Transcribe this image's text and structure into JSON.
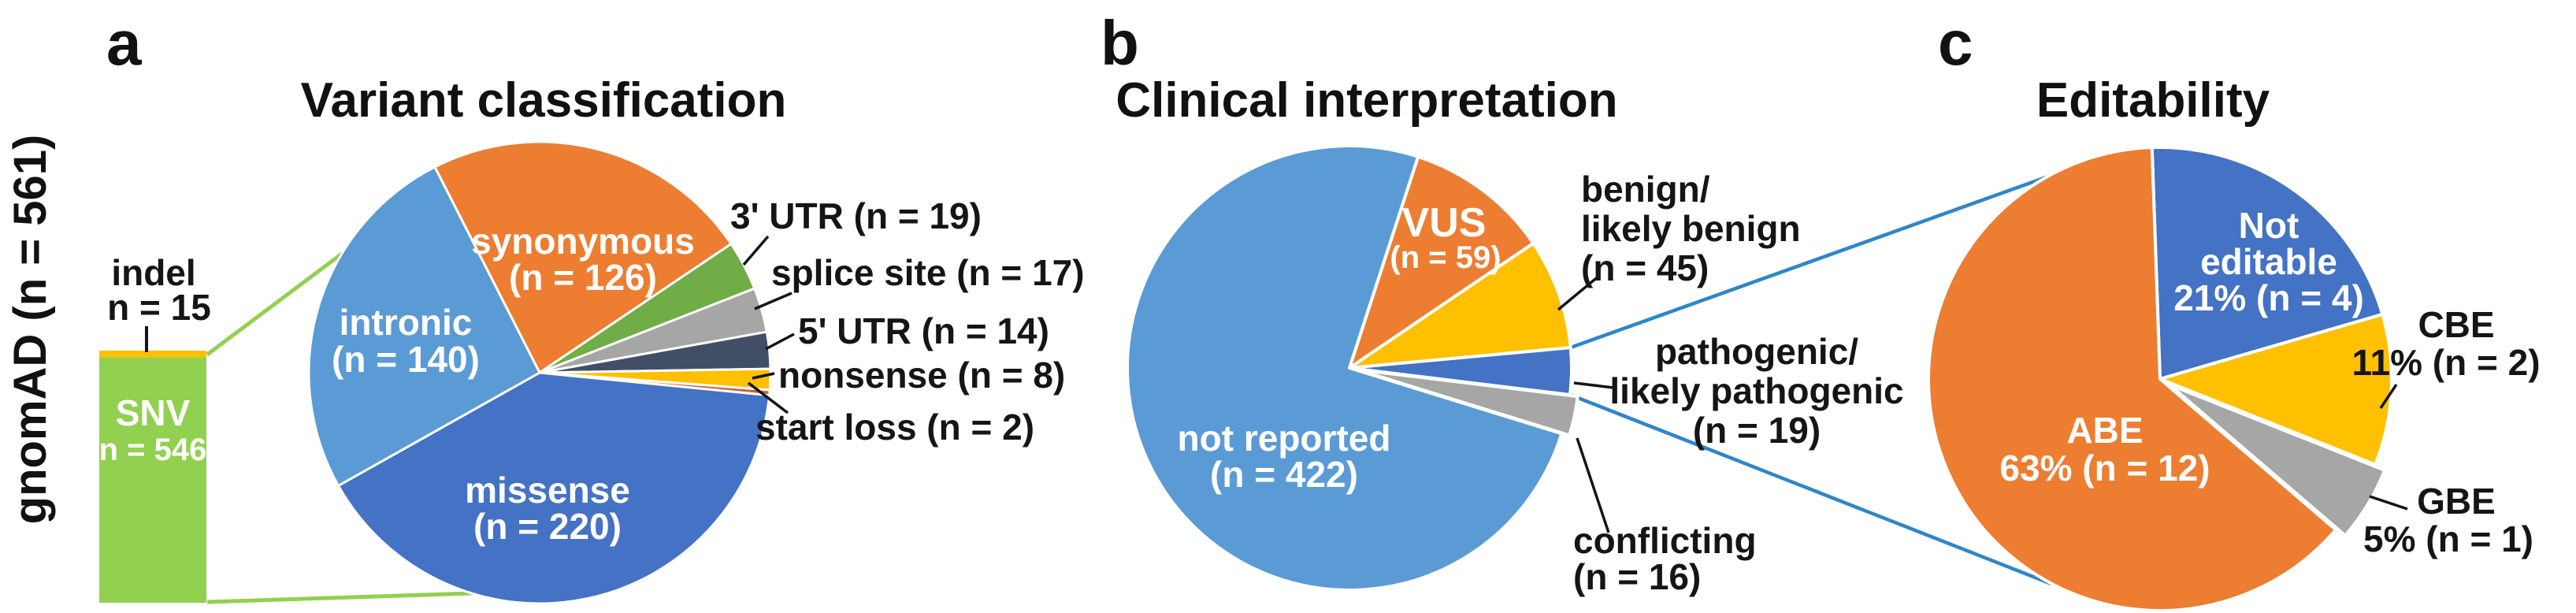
{
  "figure": {
    "panels": [
      {
        "letter": "a",
        "title": "Variant classification"
      },
      {
        "letter": "b",
        "title": "Clinical interpretation"
      },
      {
        "letter": "c",
        "title": "Editability"
      }
    ],
    "gnomad": {
      "axis_label": "gnomAD (n = 561)",
      "snv_line1": "SNV",
      "snv_line2": "n = 546",
      "indel_line1": "indel",
      "indel_line2": "n = 15"
    },
    "labels_a": {
      "synonymous1": "synonymous",
      "synonymous2": "(n = 126)",
      "intronic1": "intronic",
      "intronic2": "(n = 140)",
      "missense1": "missense",
      "missense2": "(n = 220)",
      "utr3": "3' UTR (n = 19)",
      "splice": "splice site (n = 17)",
      "utr5": "5' UTR (n = 14)",
      "nonsense": "nonsense (n = 8)",
      "startloss": "start loss (n = 2)"
    },
    "labels_b": {
      "notreported1": "not reported",
      "notreported2": "(n = 422)",
      "vus1": "VUS",
      "vus2": "(n = 59)",
      "benign1": "benign/",
      "benign2": "likely benign",
      "benign3": "(n = 45)",
      "path1": "pathogenic/",
      "path2": "likely pathogenic",
      "path3": "(n = 19)",
      "conflicting1": "conflicting",
      "conflicting2": "(n = 16)"
    },
    "labels_c": {
      "noted1": "Not",
      "noted2": "editable",
      "noted3": "21% (n = 4)",
      "abe1": "ABE",
      "abe2": "63% (n = 12)",
      "cbe1": "CBE",
      "cbe2": "11% (n = 2)",
      "gbe1": "GBE",
      "gbe2": "5% (n = 1)"
    },
    "colors": {
      "snv_green": "#92D050",
      "indel_yellow": "#FFC000",
      "orange": "#ED7D31",
      "light_blue": "#5B9BD5",
      "dark_blue": "#4472C4",
      "green": "#70AD47",
      "gray": "#A6A6A6",
      "slate": "#414F66",
      "yellow": "#FFC000",
      "start_loss_red": "#CB6242",
      "connector_blue": "#2E86C8",
      "connector_green": "#92D050"
    }
  },
  "chart_data": [
    {
      "type": "bar",
      "title": "gnomAD (n = 561)",
      "orientation": "vertical-stacked",
      "total": 561,
      "segments": [
        {
          "label": "SNV",
          "value": 546,
          "color": "#92D050"
        },
        {
          "label": "indel",
          "value": 15,
          "color": "#FFC000"
        }
      ]
    },
    {
      "type": "pie",
      "title": "Variant classification",
      "total": 546,
      "start_angle_deg": -27,
      "clockwise": true,
      "slices": [
        {
          "label": "synonymous",
          "value": 126,
          "color": "#ED7D31"
        },
        {
          "label": "3' UTR",
          "value": 19,
          "color": "#70AD47"
        },
        {
          "label": "splice site",
          "value": 17,
          "color": "#A6A6A6"
        },
        {
          "label": "5' UTR",
          "value": 14,
          "color": "#414F66"
        },
        {
          "label": "nonsense",
          "value": 8,
          "color": "#FFC000"
        },
        {
          "label": "start loss",
          "value": 2,
          "color": "#CB6242"
        },
        {
          "label": "missense",
          "value": 220,
          "color": "#4472C4"
        },
        {
          "label": "intronic",
          "value": 140,
          "color": "#5B9BD5"
        }
      ]
    },
    {
      "type": "pie",
      "title": "Clinical interpretation",
      "total": 561,
      "start_angle_deg": 18,
      "clockwise": true,
      "slices": [
        {
          "label": "VUS",
          "value": 59,
          "color": "#ED7D31"
        },
        {
          "label": "benign/likely benign",
          "value": 45,
          "color": "#FFC000"
        },
        {
          "label": "pathogenic/likely pathogenic",
          "value": 19,
          "color": "#4472C4"
        },
        {
          "label": "conflicting",
          "value": 16,
          "color": "#A6A6A6",
          "explode": 10
        },
        {
          "label": "not reported",
          "value": 422,
          "color": "#5B9BD5"
        }
      ]
    },
    {
      "type": "pie",
      "title": "Editability",
      "total": 19,
      "start_angle_deg": -2,
      "clockwise": true,
      "slices": [
        {
          "label": "Not editable",
          "value": 4,
          "percent": "21%",
          "color": "#4472C4"
        },
        {
          "label": "CBE",
          "value": 2,
          "percent": "11%",
          "color": "#FFC000"
        },
        {
          "label": "GBE",
          "value": 1,
          "percent": "5%",
          "color": "#A6A6A6",
          "explode": 14
        },
        {
          "label": "ABE",
          "value": 12,
          "percent": "63%",
          "color": "#ED7D31"
        }
      ]
    }
  ]
}
